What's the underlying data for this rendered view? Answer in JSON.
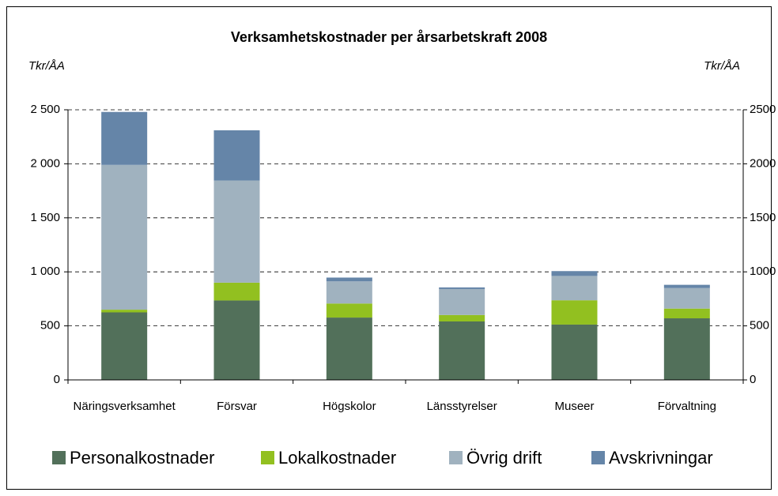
{
  "chart_data": {
    "type": "stacked_bar",
    "title": "Verksamhetskostnader per årsarbetskraft 2008",
    "y_label": "Tkr/ÅA",
    "y2_label": "Tkr/ÅA",
    "categories": [
      "Näringsverksamhet",
      "Försvar",
      "Högskolor",
      "Länsstyrelser",
      "Museer",
      "Förvaltning"
    ],
    "series": [
      {
        "name": "Personalkostnader",
        "color": "#52705a",
        "values": [
          625,
          735,
          577,
          541,
          512,
          570
        ]
      },
      {
        "name": "Lokalkostnader",
        "color": "#92c020",
        "values": [
          25,
          165,
          130,
          60,
          225,
          90
        ]
      },
      {
        "name": "Övrig drift",
        "color": "#a0b2bf",
        "values": [
          1340,
          945,
          205,
          240,
          225,
          190
        ]
      },
      {
        "name": "Avskrivningar",
        "color": "#6585a8",
        "values": [
          490,
          465,
          35,
          15,
          45,
          30
        ]
      }
    ],
    "ylim": [
      0,
      2500
    ],
    "yticks": [
      0,
      500,
      {
        "value": 1000,
        "label": "1 000"
      },
      {
        "value": 1500,
        "label": "1 500"
      },
      {
        "value": 2000,
        "label": "2 000"
      },
      {
        "value": 2500,
        "label": "2 500"
      }
    ],
    "y2lim": [
      0,
      2500
    ],
    "y2ticks": [
      0,
      500,
      1000,
      1500,
      2000,
      2500
    ],
    "grid": true,
    "legend": "bottom"
  }
}
